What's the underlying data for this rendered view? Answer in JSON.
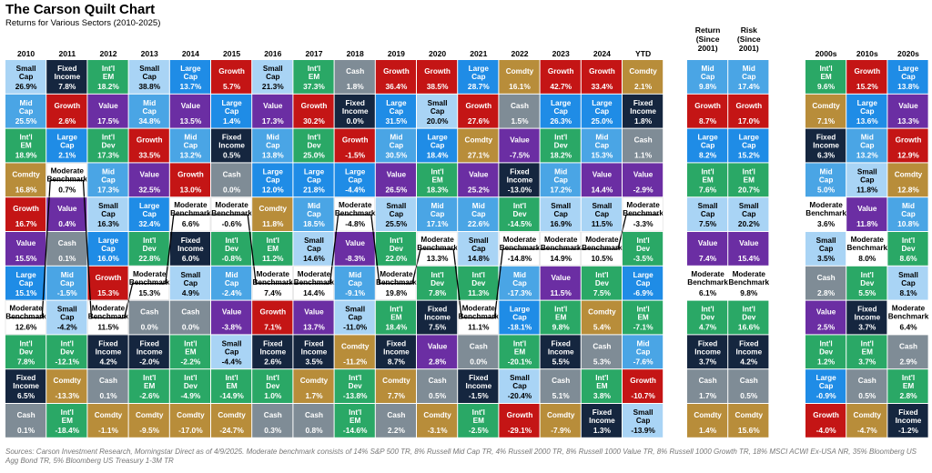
{
  "title": "The Carson Quilt Chart",
  "subtitle": "Returns for Various Sectors (2010-2025)",
  "footer": "Sources: Carson Investment Research, Morningstar Direct as of 4/9/2025. Moderate benchmark consists of 14% S&P 500 TR, 8% Russell Mid Cap TR, 4% Russell 2000 TR, 8% Russell 1000 Value TR, 8% Russell 1000 Growth TR, 18% MSCI ACWI Ex-USA NR, 35% Bloomberg US Agg Bond TR, 5% Bloomberg US Treasury 1-3M TR",
  "colors": {
    "Small Cap": "#a9d4f5",
    "Fixed Income": "#15263f",
    "Int'l EM": "#2aa866",
    "Large Cap": "#1f8ce6",
    "Growth": "#c41515",
    "Cash": "#7f8c96",
    "Comdty": "#b88d3a",
    "Mid Cap": "#4aa5e5",
    "Value": "#6b2ea3",
    "Int'l Dev": "#2aa866",
    "Moderate Benchmark": "#ffffff"
  },
  "chart_data": [
    {
      "type": "table",
      "name": "annual",
      "columns": [
        "2010",
        "2011",
        "2012",
        "2013",
        "2014",
        "2015",
        "2016",
        "2017",
        "2018",
        "2019",
        "2020",
        "2021",
        "2022",
        "2023",
        "2024",
        "YTD"
      ],
      "rows_by_column": [
        [
          [
            "Small Cap",
            "26.9%"
          ],
          [
            "Mid Cap",
            "25.5%"
          ],
          [
            "Int'l EM",
            "18.9%"
          ],
          [
            "Comdty",
            "16.8%"
          ],
          [
            "Growth",
            "16.7%"
          ],
          [
            "Value",
            "15.5%"
          ],
          [
            "Large Cap",
            "15.1%"
          ],
          [
            "Moderate Benchmark",
            "12.6%"
          ],
          [
            "Int'l Dev",
            "7.8%"
          ],
          [
            "Fixed Income",
            "6.5%"
          ],
          [
            "Cash",
            "0.1%"
          ]
        ],
        [
          [
            "Fixed Income",
            "7.8%"
          ],
          [
            "Growth",
            "2.6%"
          ],
          [
            "Large Cap",
            "2.1%"
          ],
          [
            "Moderate Benchmark",
            "0.7%"
          ],
          [
            "Value",
            "0.4%"
          ],
          [
            "Cash",
            "0.1%"
          ],
          [
            "Mid Cap",
            "-1.5%"
          ],
          [
            "Small Cap",
            "-4.2%"
          ],
          [
            "Int'l Dev",
            "-12.1%"
          ],
          [
            "Comdty",
            "-13.3%"
          ],
          [
            "Int'l EM",
            "-18.4%"
          ]
        ],
        [
          [
            "Int'l EM",
            "18.2%"
          ],
          [
            "Value",
            "17.5%"
          ],
          [
            "Int'l Dev",
            "17.3%"
          ],
          [
            "Mid Cap",
            "17.3%"
          ],
          [
            "Small Cap",
            "16.3%"
          ],
          [
            "Large Cap",
            "16.0%"
          ],
          [
            "Growth",
            "15.3%"
          ],
          [
            "Moderate Benchmark",
            "11.5%"
          ],
          [
            "Fixed Income",
            "4.2%"
          ],
          [
            "Cash",
            "0.1%"
          ],
          [
            "Comdty",
            "-1.1%"
          ]
        ],
        [
          [
            "Small Cap",
            "38.8%"
          ],
          [
            "Mid Cap",
            "34.8%"
          ],
          [
            "Growth",
            "33.5%"
          ],
          [
            "Value",
            "32.5%"
          ],
          [
            "Large Cap",
            "32.4%"
          ],
          [
            "Int'l Dev",
            "22.8%"
          ],
          [
            "Moderate Benchmark",
            "15.3%"
          ],
          [
            "Cash",
            "0.0%"
          ],
          [
            "Fixed Income",
            "-2.0%"
          ],
          [
            "Int'l EM",
            "-2.6%"
          ],
          [
            "Comdty",
            "-9.5%"
          ]
        ],
        [
          [
            "Large Cap",
            "13.7%"
          ],
          [
            "Value",
            "13.5%"
          ],
          [
            "Mid Cap",
            "13.2%"
          ],
          [
            "Growth",
            "13.0%"
          ],
          [
            "Moderate Benchmark",
            "6.6%"
          ],
          [
            "Fixed Income",
            "6.0%"
          ],
          [
            "Small Cap",
            "4.9%"
          ],
          [
            "Cash",
            "0.0%"
          ],
          [
            "Int'l EM",
            "-2.2%"
          ],
          [
            "Int'l Dev",
            "-4.9%"
          ],
          [
            "Comdty",
            "-17.0%"
          ]
        ],
        [
          [
            "Growth",
            "5.7%"
          ],
          [
            "Large Cap",
            "1.4%"
          ],
          [
            "Fixed Income",
            "0.5%"
          ],
          [
            "Cash",
            "0.0%"
          ],
          [
            "Moderate Benchmark",
            "-0.6%"
          ],
          [
            "Int'l Dev",
            "-0.8%"
          ],
          [
            "Mid Cap",
            "-2.4%"
          ],
          [
            "Value",
            "-3.8%"
          ],
          [
            "Small Cap",
            "-4.4%"
          ],
          [
            "Int'l EM",
            "-14.9%"
          ],
          [
            "Comdty",
            "-24.7%"
          ]
        ],
        [
          [
            "Small Cap",
            "21.3%"
          ],
          [
            "Value",
            "17.3%"
          ],
          [
            "Mid Cap",
            "13.8%"
          ],
          [
            "Large Cap",
            "12.0%"
          ],
          [
            "Comdty",
            "11.8%"
          ],
          [
            "Int'l EM",
            "11.2%"
          ],
          [
            "Moderate Benchmark",
            "7.4%"
          ],
          [
            "Growth",
            "7.1%"
          ],
          [
            "Fixed Income",
            "2.6%"
          ],
          [
            "Int'l Dev",
            "1.0%"
          ],
          [
            "Cash",
            "0.3%"
          ]
        ],
        [
          [
            "Int'l EM",
            "37.3%"
          ],
          [
            "Growth",
            "30.2%"
          ],
          [
            "Int'l Dev",
            "25.0%"
          ],
          [
            "Large Cap",
            "21.8%"
          ],
          [
            "Mid Cap",
            "18.5%"
          ],
          [
            "Small Cap",
            "14.6%"
          ],
          [
            "Moderate Benchmark",
            "14.4%"
          ],
          [
            "Value",
            "13.7%"
          ],
          [
            "Fixed Income",
            "3.5%"
          ],
          [
            "Comdty",
            "1.7%"
          ],
          [
            "Cash",
            "0.8%"
          ]
        ],
        [
          [
            "Cash",
            "1.8%"
          ],
          [
            "Fixed Income",
            "0.0%"
          ],
          [
            "Growth",
            "-1.5%"
          ],
          [
            "Large Cap",
            "-4.4%"
          ],
          [
            "Moderate Benchmark",
            "-4.8%"
          ],
          [
            "Value",
            "-8.3%"
          ],
          [
            "Mid Cap",
            "-9.1%"
          ],
          [
            "Small Cap",
            "-11.0%"
          ],
          [
            "Comdty",
            "-11.2%"
          ],
          [
            "Int'l Dev",
            "-13.8%"
          ],
          [
            "Int'l EM",
            "-14.6%"
          ]
        ],
        [
          [
            "Growth",
            "36.4%"
          ],
          [
            "Large Cap",
            "31.5%"
          ],
          [
            "Mid Cap",
            "30.5%"
          ],
          [
            "Value",
            "26.5%"
          ],
          [
            "Small Cap",
            "25.5%"
          ],
          [
            "Int'l Dev",
            "22.0%"
          ],
          [
            "Moderate Benchmark",
            "19.8%"
          ],
          [
            "Int'l EM",
            "18.4%"
          ],
          [
            "Fixed Income",
            "8.7%"
          ],
          [
            "Comdty",
            "7.7%"
          ],
          [
            "Cash",
            "2.2%"
          ]
        ],
        [
          [
            "Growth",
            "38.5%"
          ],
          [
            "Small Cap",
            "20.0%"
          ],
          [
            "Large Cap",
            "18.4%"
          ],
          [
            "Int'l EM",
            "18.3%"
          ],
          [
            "Mid Cap",
            "17.1%"
          ],
          [
            "Moderate Benchmark",
            "13.3%"
          ],
          [
            "Int'l Dev",
            "7.8%"
          ],
          [
            "Fixed Income",
            "7.5%"
          ],
          [
            "Value",
            "2.8%"
          ],
          [
            "Cash",
            "0.5%"
          ],
          [
            "Comdty",
            "-3.1%"
          ]
        ],
        [
          [
            "Large Cap",
            "28.7%"
          ],
          [
            "Growth",
            "27.6%"
          ],
          [
            "Comdty",
            "27.1%"
          ],
          [
            "Value",
            "25.2%"
          ],
          [
            "Mid Cap",
            "22.6%"
          ],
          [
            "Small Cap",
            "14.8%"
          ],
          [
            "Int'l Dev",
            "11.3%"
          ],
          [
            "Moderate Benchmark",
            "11.1%"
          ],
          [
            "Cash",
            "0.0%"
          ],
          [
            "Fixed Income",
            "-1.5%"
          ],
          [
            "Int'l EM",
            "-2.5%"
          ]
        ],
        [
          [
            "Comdty",
            "16.1%"
          ],
          [
            "Cash",
            "1.5%"
          ],
          [
            "Value",
            "-7.5%"
          ],
          [
            "Fixed Income",
            "-13.0%"
          ],
          [
            "Int'l Dev",
            "-14.5%"
          ],
          [
            "Moderate Benchmark",
            "-14.8%"
          ],
          [
            "Mid Cap",
            "-17.3%"
          ],
          [
            "Large Cap",
            "-18.1%"
          ],
          [
            "Int'l EM",
            "-20.1%"
          ],
          [
            "Small Cap",
            "-20.4%"
          ],
          [
            "Growth",
            "-29.1%"
          ]
        ],
        [
          [
            "Growth",
            "42.7%"
          ],
          [
            "Large Cap",
            "26.3%"
          ],
          [
            "Int'l Dev",
            "18.2%"
          ],
          [
            "Mid Cap",
            "17.2%"
          ],
          [
            "Small Cap",
            "16.9%"
          ],
          [
            "Moderate Benchmark",
            "14.9%"
          ],
          [
            "Value",
            "11.5%"
          ],
          [
            "Int'l EM",
            "9.8%"
          ],
          [
            "Fixed Income",
            "5.5%"
          ],
          [
            "Cash",
            "5.1%"
          ],
          [
            "Comdty",
            "-7.9%"
          ]
        ],
        [
          [
            "Growth",
            "33.4%"
          ],
          [
            "Large Cap",
            "25.0%"
          ],
          [
            "Mid Cap",
            "15.3%"
          ],
          [
            "Value",
            "14.4%"
          ],
          [
            "Small Cap",
            "11.5%"
          ],
          [
            "Moderate Benchmark",
            "10.5%"
          ],
          [
            "Int'l Dev",
            "7.5%"
          ],
          [
            "Comdty",
            "5.4%"
          ],
          [
            "Cash",
            "5.3%"
          ],
          [
            "Int'l EM",
            "3.8%"
          ],
          [
            "Fixed Income",
            "1.3%"
          ]
        ],
        [
          [
            "Comdty",
            "2.1%"
          ],
          [
            "Fixed Income",
            "1.8%"
          ],
          [
            "Cash",
            "1.1%"
          ],
          [
            "Value",
            "-2.9%"
          ],
          [
            "Moderate Benchmark",
            "-3.3%"
          ],
          [
            "Int'l Dev",
            "-3.5%"
          ],
          [
            "Large Cap",
            "-6.9%"
          ],
          [
            "Int'l EM",
            "-7.1%"
          ],
          [
            "Mid Cap",
            "-7.6%"
          ],
          [
            "Growth",
            "-10.7%"
          ],
          [
            "Small Cap",
            "-13.9%"
          ]
        ]
      ]
    },
    {
      "type": "table",
      "name": "since-2001",
      "columns": [
        "Return (Since 2001)",
        "Risk (Since 2001)"
      ],
      "rows_by_column": [
        [
          [
            "Mid Cap",
            "9.8%"
          ],
          [
            "Growth",
            "8.7%"
          ],
          [
            "Large Cap",
            "8.2%"
          ],
          [
            "Int'l EM",
            "7.6%"
          ],
          [
            "Small Cap",
            "7.5%"
          ],
          [
            "Value",
            "7.4%"
          ],
          [
            "Moderate Benchmark",
            "6.1%"
          ],
          [
            "Int'l Dev",
            "4.7%"
          ],
          [
            "Fixed Income",
            "3.7%"
          ],
          [
            "Cash",
            "1.7%"
          ],
          [
            "Comdty",
            "1.4%"
          ]
        ],
        [
          [
            "Mid Cap",
            "17.4%"
          ],
          [
            "Growth",
            "17.0%"
          ],
          [
            "Large Cap",
            "15.2%"
          ],
          [
            "Int'l EM",
            "20.7%"
          ],
          [
            "Small Cap",
            "20.2%"
          ],
          [
            "Value",
            "15.4%"
          ],
          [
            "Moderate Benchmark",
            "9.8%"
          ],
          [
            "Int'l Dev",
            "16.6%"
          ],
          [
            "Fixed Income",
            "4.2%"
          ],
          [
            "Cash",
            "0.5%"
          ],
          [
            "Comdty",
            "15.6%"
          ]
        ]
      ]
    },
    {
      "type": "table",
      "name": "decades",
      "columns": [
        "2000s",
        "2010s",
        "2020s"
      ],
      "rows_by_column": [
        [
          [
            "Int'l EM",
            "9.6%"
          ],
          [
            "Comdty",
            "7.1%"
          ],
          [
            "Fixed Income",
            "6.3%"
          ],
          [
            "Mid Cap",
            "5.0%"
          ],
          [
            "Moderate Benchmark",
            "3.6%"
          ],
          [
            "Small Cap",
            "3.5%"
          ],
          [
            "Cash",
            "2.8%"
          ],
          [
            "Value",
            "2.5%"
          ],
          [
            "Int'l Dev",
            "1.2%"
          ],
          [
            "Large Cap",
            "-0.9%"
          ],
          [
            "Growth",
            "-4.0%"
          ]
        ],
        [
          [
            "Growth",
            "15.2%"
          ],
          [
            "Large Cap",
            "13.6%"
          ],
          [
            "Mid Cap",
            "13.2%"
          ],
          [
            "Small Cap",
            "11.8%"
          ],
          [
            "Value",
            "11.8%"
          ],
          [
            "Moderate Benchmark",
            "8.0%"
          ],
          [
            "Int'l Dev",
            "5.5%"
          ],
          [
            "Fixed Income",
            "3.7%"
          ],
          [
            "Int'l EM",
            "3.7%"
          ],
          [
            "Cash",
            "0.5%"
          ],
          [
            "Comdty",
            "-4.7%"
          ]
        ],
        [
          [
            "Large Cap",
            "13.8%"
          ],
          [
            "Value",
            "13.3%"
          ],
          [
            "Growth",
            "12.9%"
          ],
          [
            "Comdty",
            "12.8%"
          ],
          [
            "Mid Cap",
            "10.8%"
          ],
          [
            "Int'l Dev",
            "8.6%"
          ],
          [
            "Small Cap",
            "8.1%"
          ],
          [
            "Moderate Benchmark",
            "6.4%"
          ],
          [
            "Cash",
            "2.9%"
          ],
          [
            "Int'l EM",
            "2.8%"
          ],
          [
            "Fixed Income",
            "-1.2%"
          ]
        ]
      ]
    }
  ]
}
